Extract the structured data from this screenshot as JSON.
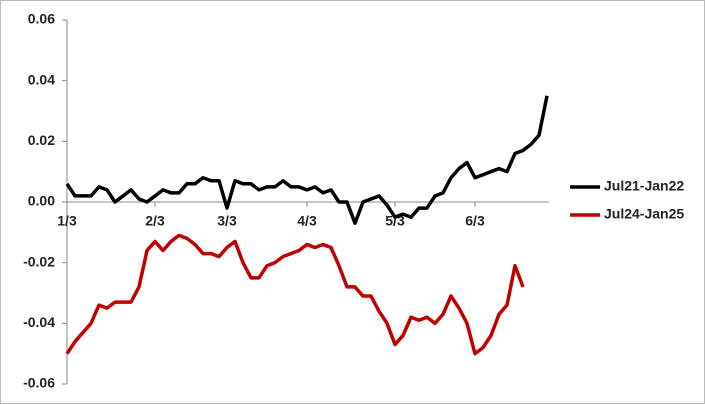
{
  "chart_data": {
    "type": "line",
    "categories": [
      "1/3",
      null,
      null,
      null,
      null,
      null,
      null,
      null,
      null,
      null,
      null,
      "2/3",
      null,
      null,
      null,
      null,
      null,
      null,
      null,
      null,
      "3/3",
      null,
      null,
      null,
      null,
      null,
      null,
      null,
      null,
      null,
      "4/3",
      null,
      null,
      null,
      null,
      null,
      null,
      null,
      null,
      null,
      null,
      "5/3",
      null,
      null,
      null,
      null,
      null,
      null,
      null,
      null,
      null,
      "6/3",
      null,
      null,
      null,
      null,
      null,
      null,
      null,
      null,
      null
    ],
    "series": [
      {
        "name": "Jul21-Jan22",
        "color": "#000000",
        "values": [
          0.006,
          0.002,
          0.002,
          0.002,
          0.005,
          0.004,
          0.0,
          0.002,
          0.004,
          0.001,
          0.0,
          0.002,
          0.004,
          0.003,
          0.003,
          0.006,
          0.006,
          0.008,
          0.007,
          0.007,
          -0.002,
          0.007,
          0.006,
          0.006,
          0.004,
          0.005,
          0.005,
          0.007,
          0.005,
          0.005,
          0.004,
          0.005,
          0.003,
          0.004,
          0.0,
          0.0,
          -0.007,
          0.0,
          0.001,
          0.002,
          -0.001,
          -0.005,
          -0.004,
          -0.005,
          -0.002,
          -0.002,
          0.002,
          0.003,
          0.008,
          0.011,
          0.013,
          0.008,
          0.009,
          0.01,
          0.011,
          0.01,
          0.016,
          0.017,
          0.019,
          0.022,
          0.035
        ]
      },
      {
        "name": "Jul24-Jan25",
        "color": "#c00000",
        "values": [
          -0.05,
          -0.046,
          -0.043,
          -0.04,
          -0.034,
          -0.035,
          -0.033,
          -0.033,
          -0.033,
          -0.028,
          -0.016,
          -0.013,
          -0.016,
          -0.013,
          -0.011,
          -0.012,
          -0.014,
          -0.017,
          -0.017,
          -0.018,
          -0.015,
          -0.013,
          -0.02,
          -0.025,
          -0.025,
          -0.021,
          -0.02,
          -0.018,
          -0.017,
          -0.016,
          -0.014,
          -0.015,
          -0.014,
          -0.015,
          -0.021,
          -0.028,
          -0.028,
          -0.031,
          -0.031,
          -0.036,
          -0.04,
          -0.047,
          -0.044,
          -0.038,
          -0.039,
          -0.038,
          -0.04,
          -0.037,
          -0.031,
          -0.035,
          -0.04,
          -0.05,
          -0.048,
          -0.044,
          -0.037,
          -0.034,
          -0.021,
          -0.028,
          null,
          null,
          null
        ]
      }
    ],
    "ylim": [
      -0.06,
      0.06
    ],
    "yticks": [
      -0.06,
      -0.04,
      -0.02,
      {
        "value": 0,
        "label": "0.00"
      },
      0.02,
      0.04,
      0.06
    ],
    "legend": "right"
  }
}
